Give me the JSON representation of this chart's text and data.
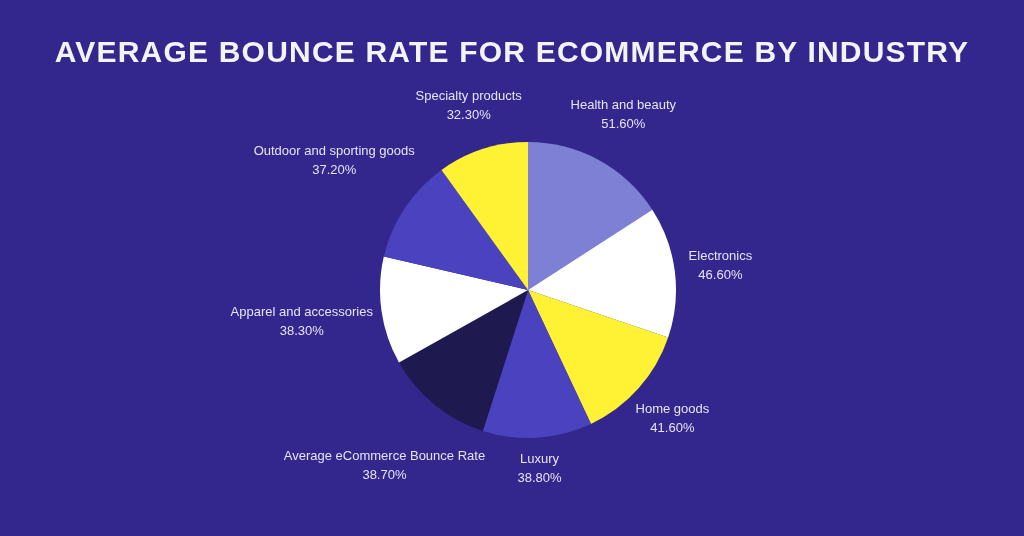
{
  "chart_data": {
    "type": "pie",
    "title": "AVERAGE BOUNCE RATE FOR ECOMMERCE BY INDUSTRY",
    "categories": [
      "Health and beauty",
      "Electronics",
      "Home goods",
      "Luxury",
      "Average eCommerce Bounce Rate",
      "Apparel and accessories",
      "Outdoor and sporting goods",
      "Specialty products"
    ],
    "values": [
      51.6,
      46.6,
      41.6,
      38.8,
      38.7,
      38.3,
      37.2,
      32.3
    ],
    "value_labels": [
      "51.60%",
      "46.60%",
      "41.60%",
      "38.80%",
      "38.70%",
      "38.30%",
      "37.20%",
      "32.30%"
    ],
    "colors": [
      "#7d80d4",
      "#ffffff",
      "#fff133",
      "#4a42bf",
      "#1e1a50",
      "#ffffff",
      "#4a42bf",
      "#fff133"
    ]
  }
}
